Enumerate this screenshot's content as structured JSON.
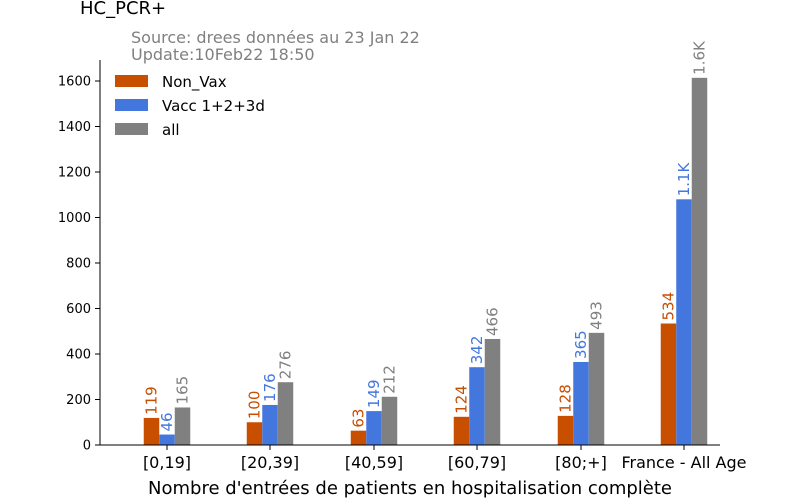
{
  "chart_data": {
    "type": "bar",
    "title": "HC_PCR+",
    "subtitle_lines": [
      "Source: drees données au 23 Jan 22",
      "Update:10Feb22 18:50"
    ],
    "xlabel": "Nombre d'entrées de patients en hospitalisation complète",
    "ylabel": "",
    "ylim": [
      0,
      1700
    ],
    "yticks": [
      0,
      200,
      400,
      600,
      800,
      1000,
      1200,
      1400,
      1600
    ],
    "categories": [
      "[0,19]",
      "[20,39]",
      "[40,59]",
      "[60,79]",
      "[80;+]",
      "France - All Age"
    ],
    "series": [
      {
        "name": "Non_Vax",
        "color": "#c84e00",
        "values": [
          119,
          100,
          63,
          124,
          128,
          534
        ],
        "labels": [
          "119",
          "100",
          "63",
          "124",
          "128",
          "534"
        ]
      },
      {
        "name": "Vacc 1+2+3d",
        "color": "#4477dd",
        "values": [
          46,
          176,
          149,
          342,
          365,
          1080
        ],
        "labels": [
          "46",
          "176",
          "149",
          "342",
          "365",
          "1.1K"
        ]
      },
      {
        "name": "all",
        "color": "#808080",
        "values": [
          165,
          276,
          212,
          466,
          493,
          1614
        ],
        "labels": [
          "165",
          "276",
          "212",
          "466",
          "493",
          "1.6K"
        ]
      }
    ],
    "legend_position": "top-left",
    "grid": false
  }
}
